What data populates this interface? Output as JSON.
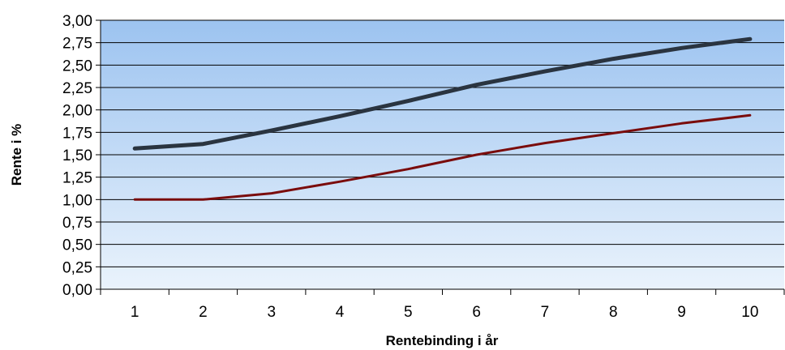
{
  "chart_data": {
    "type": "line",
    "title": "",
    "xlabel": "Rentebinding i år",
    "ylabel": "Rente i %",
    "x": [
      1,
      2,
      3,
      4,
      5,
      6,
      7,
      8,
      9,
      10
    ],
    "x_tick_labels": [
      "1",
      "2",
      "3",
      "4",
      "5",
      "6",
      "7",
      "8",
      "9",
      "10"
    ],
    "ylim": [
      0,
      3
    ],
    "y_ticks": [
      0,
      0.25,
      0.5,
      0.75,
      1,
      1.25,
      1.5,
      1.75,
      2,
      2.25,
      2.5,
      2.75,
      3
    ],
    "y_tick_labels": [
      "0,00",
      "0,25",
      "0,50",
      "0,75",
      "1,00",
      "1,25",
      "1,50",
      "1,75",
      "2,00",
      "2,25",
      "2,50",
      "2,75",
      "3,00"
    ],
    "grid": "horizontal",
    "legend": "none",
    "background_gradient": [
      "#9cc3f0",
      "#eaf3fc"
    ],
    "series": [
      {
        "color": "#2a3440",
        "values": [
          1.57,
          1.62,
          1.77,
          1.93,
          2.1,
          2.28,
          2.43,
          2.57,
          2.69,
          2.79
        ]
      },
      {
        "color": "#7a0c0c",
        "values": [
          1.0,
          1.0,
          1.07,
          1.2,
          1.34,
          1.5,
          1.63,
          1.74,
          1.85,
          1.94
        ]
      }
    ]
  }
}
